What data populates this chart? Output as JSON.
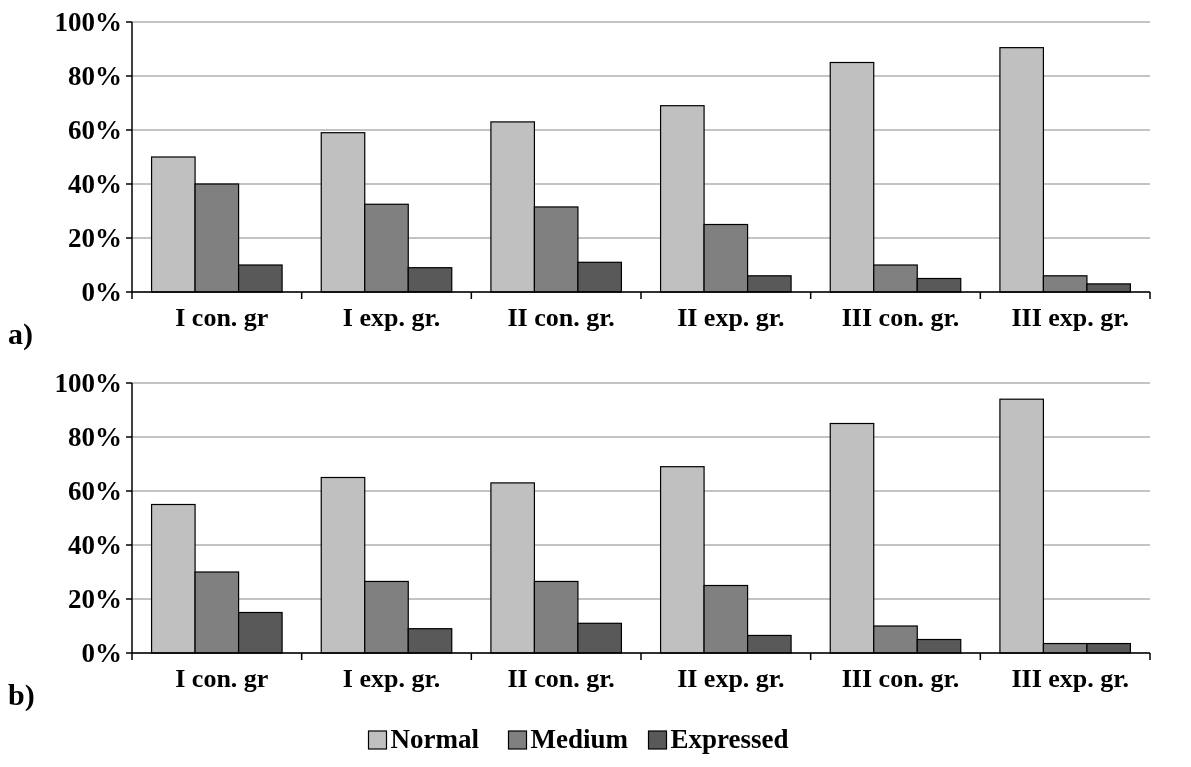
{
  "chart_data": [
    {
      "type": "bar",
      "categories": [
        "I con. gr",
        "I exp. gr.",
        "II con. gr.",
        "II exp. gr.",
        "III con. gr.",
        "III exp. gr."
      ],
      "series": [
        {
          "color": "#c0c0c0",
          "values": [
            50,
            59,
            63,
            69,
            85,
            90.5
          ]
        },
        {
          "color": "#808080",
          "values": [
            40,
            32.5,
            31.5,
            25,
            10,
            6
          ]
        },
        {
          "color": "#595959",
          "values": [
            10,
            9,
            11,
            6,
            5,
            3
          ]
        }
      ],
      "ylim": [
        0,
        100
      ],
      "yticks": [
        {
          "value": 0,
          "label": "0%"
        },
        {
          "value": 20,
          "label": "20%"
        },
        {
          "value": 40,
          "label": "40%"
        },
        {
          "value": 60,
          "label": "60%"
        },
        {
          "value": 80,
          "label": "80%"
        },
        {
          "value": 100,
          "label": "100%"
        }
      ],
      "grid": "y",
      "legend": false,
      "annotations": [
        "a)"
      ]
    },
    {
      "type": "bar",
      "categories": [
        "I con. gr",
        "I exp. gr.",
        "II con. gr.",
        "II exp. gr.",
        "III con. gr.",
        "III exp. gr."
      ],
      "series": [
        {
          "name": "Normal",
          "color": "#c0c0c0",
          "values": [
            55,
            65,
            63,
            69,
            85,
            94
          ]
        },
        {
          "name": "Medium",
          "color": "#808080",
          "values": [
            30,
            26.5,
            26.5,
            25,
            10,
            3.5
          ]
        },
        {
          "name": "Expressed",
          "color": "#595959",
          "values": [
            15,
            9,
            11,
            6.5,
            5,
            3.5
          ]
        }
      ],
      "ylim": [
        0,
        100
      ],
      "yticks": [
        {
          "value": 0,
          "label": "0%"
        },
        {
          "value": 20,
          "label": "20%"
        },
        {
          "value": 40,
          "label": "40%"
        },
        {
          "value": 60,
          "label": "60%"
        },
        {
          "value": 80,
          "label": "80%"
        },
        {
          "value": 100,
          "label": "100%"
        }
      ],
      "grid": "y",
      "legend": "bottom",
      "annotations": [
        "b)"
      ]
    }
  ]
}
